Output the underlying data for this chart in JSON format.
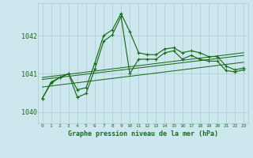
{
  "title": "Graphe pression niveau de la mer (hPa)",
  "background_color": "#cce8ee",
  "grid_color": "#aacccc",
  "line_color": "#1a6b1a",
  "xlim": [
    -0.5,
    23.5
  ],
  "ylim": [
    1039.7,
    1042.85
  ],
  "yticks": [
    1040,
    1041,
    1042
  ],
  "xticks": [
    0,
    1,
    2,
    3,
    4,
    5,
    6,
    7,
    8,
    9,
    10,
    11,
    12,
    13,
    14,
    15,
    16,
    17,
    18,
    19,
    20,
    21,
    22,
    23
  ],
  "series1_x": [
    0,
    1,
    2,
    3,
    4,
    5,
    6,
    7,
    8,
    9,
    10,
    11,
    12,
    13,
    14,
    15,
    16,
    17,
    18,
    19,
    20,
    21,
    22,
    23
  ],
  "series1_y": [
    1040.35,
    1040.78,
    1040.9,
    1041.0,
    1040.58,
    1040.63,
    1041.28,
    1042.0,
    1042.15,
    1042.58,
    1042.1,
    1041.55,
    1041.5,
    1041.5,
    1041.65,
    1041.68,
    1041.55,
    1041.6,
    1041.55,
    1041.45,
    1041.45,
    1041.2,
    1041.1,
    1041.15
  ],
  "series2_x": [
    0,
    1,
    2,
    3,
    4,
    5,
    6,
    7,
    8,
    9,
    10,
    11,
    12,
    13,
    14,
    15,
    16,
    17,
    18,
    19,
    20,
    21,
    22,
    23
  ],
  "series2_y": [
    1040.35,
    1040.75,
    1040.9,
    1041.0,
    1040.38,
    1040.48,
    1041.12,
    1041.85,
    1042.02,
    1042.5,
    1041.0,
    1041.38,
    1041.38,
    1041.38,
    1041.55,
    1041.6,
    1041.38,
    1041.48,
    1041.38,
    1041.33,
    1041.33,
    1041.08,
    1041.05,
    1041.1
  ],
  "trend1_x": [
    0,
    23
  ],
  "trend1_y": [
    1040.9,
    1041.55
  ],
  "trend2_x": [
    0,
    23
  ],
  "trend2_y": [
    1040.85,
    1041.48
  ],
  "trend3_x": [
    0,
    23
  ],
  "trend3_y": [
    1040.65,
    1041.3
  ]
}
